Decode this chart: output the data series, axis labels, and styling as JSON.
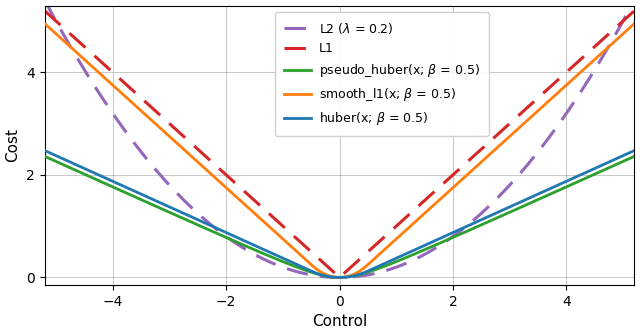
{
  "title": "",
  "xlabel": "Control",
  "ylabel": "Cost",
  "xlim": [
    -5.2,
    5.2
  ],
  "ylim": [
    -0.15,
    5.3
  ],
  "beta": 0.5,
  "lambda_l2": 0.2,
  "colors": {
    "huber": "#1f77b4",
    "smooth_l1": "#ff7f0e",
    "pseudo_huber": "#2ca02c",
    "L1": "#d62728",
    "L2": "#9467bd"
  },
  "legend_labels": {
    "huber": "huber(x; $\\beta$ = 0.5)",
    "smooth_l1": "smooth_l1(x; $\\beta$ = 0.5)",
    "pseudo_huber": "pseudo_huber(x; $\\beta$ = 0.5)",
    "L1": "L1",
    "L2": "L2 ($\\lambda$ = 0.2)"
  },
  "figsize": [
    6.4,
    3.35
  ],
  "dpi": 100,
  "xticks": [
    -4,
    -2,
    0,
    2,
    4
  ],
  "yticks": [
    0,
    2,
    4
  ],
  "grid": true
}
